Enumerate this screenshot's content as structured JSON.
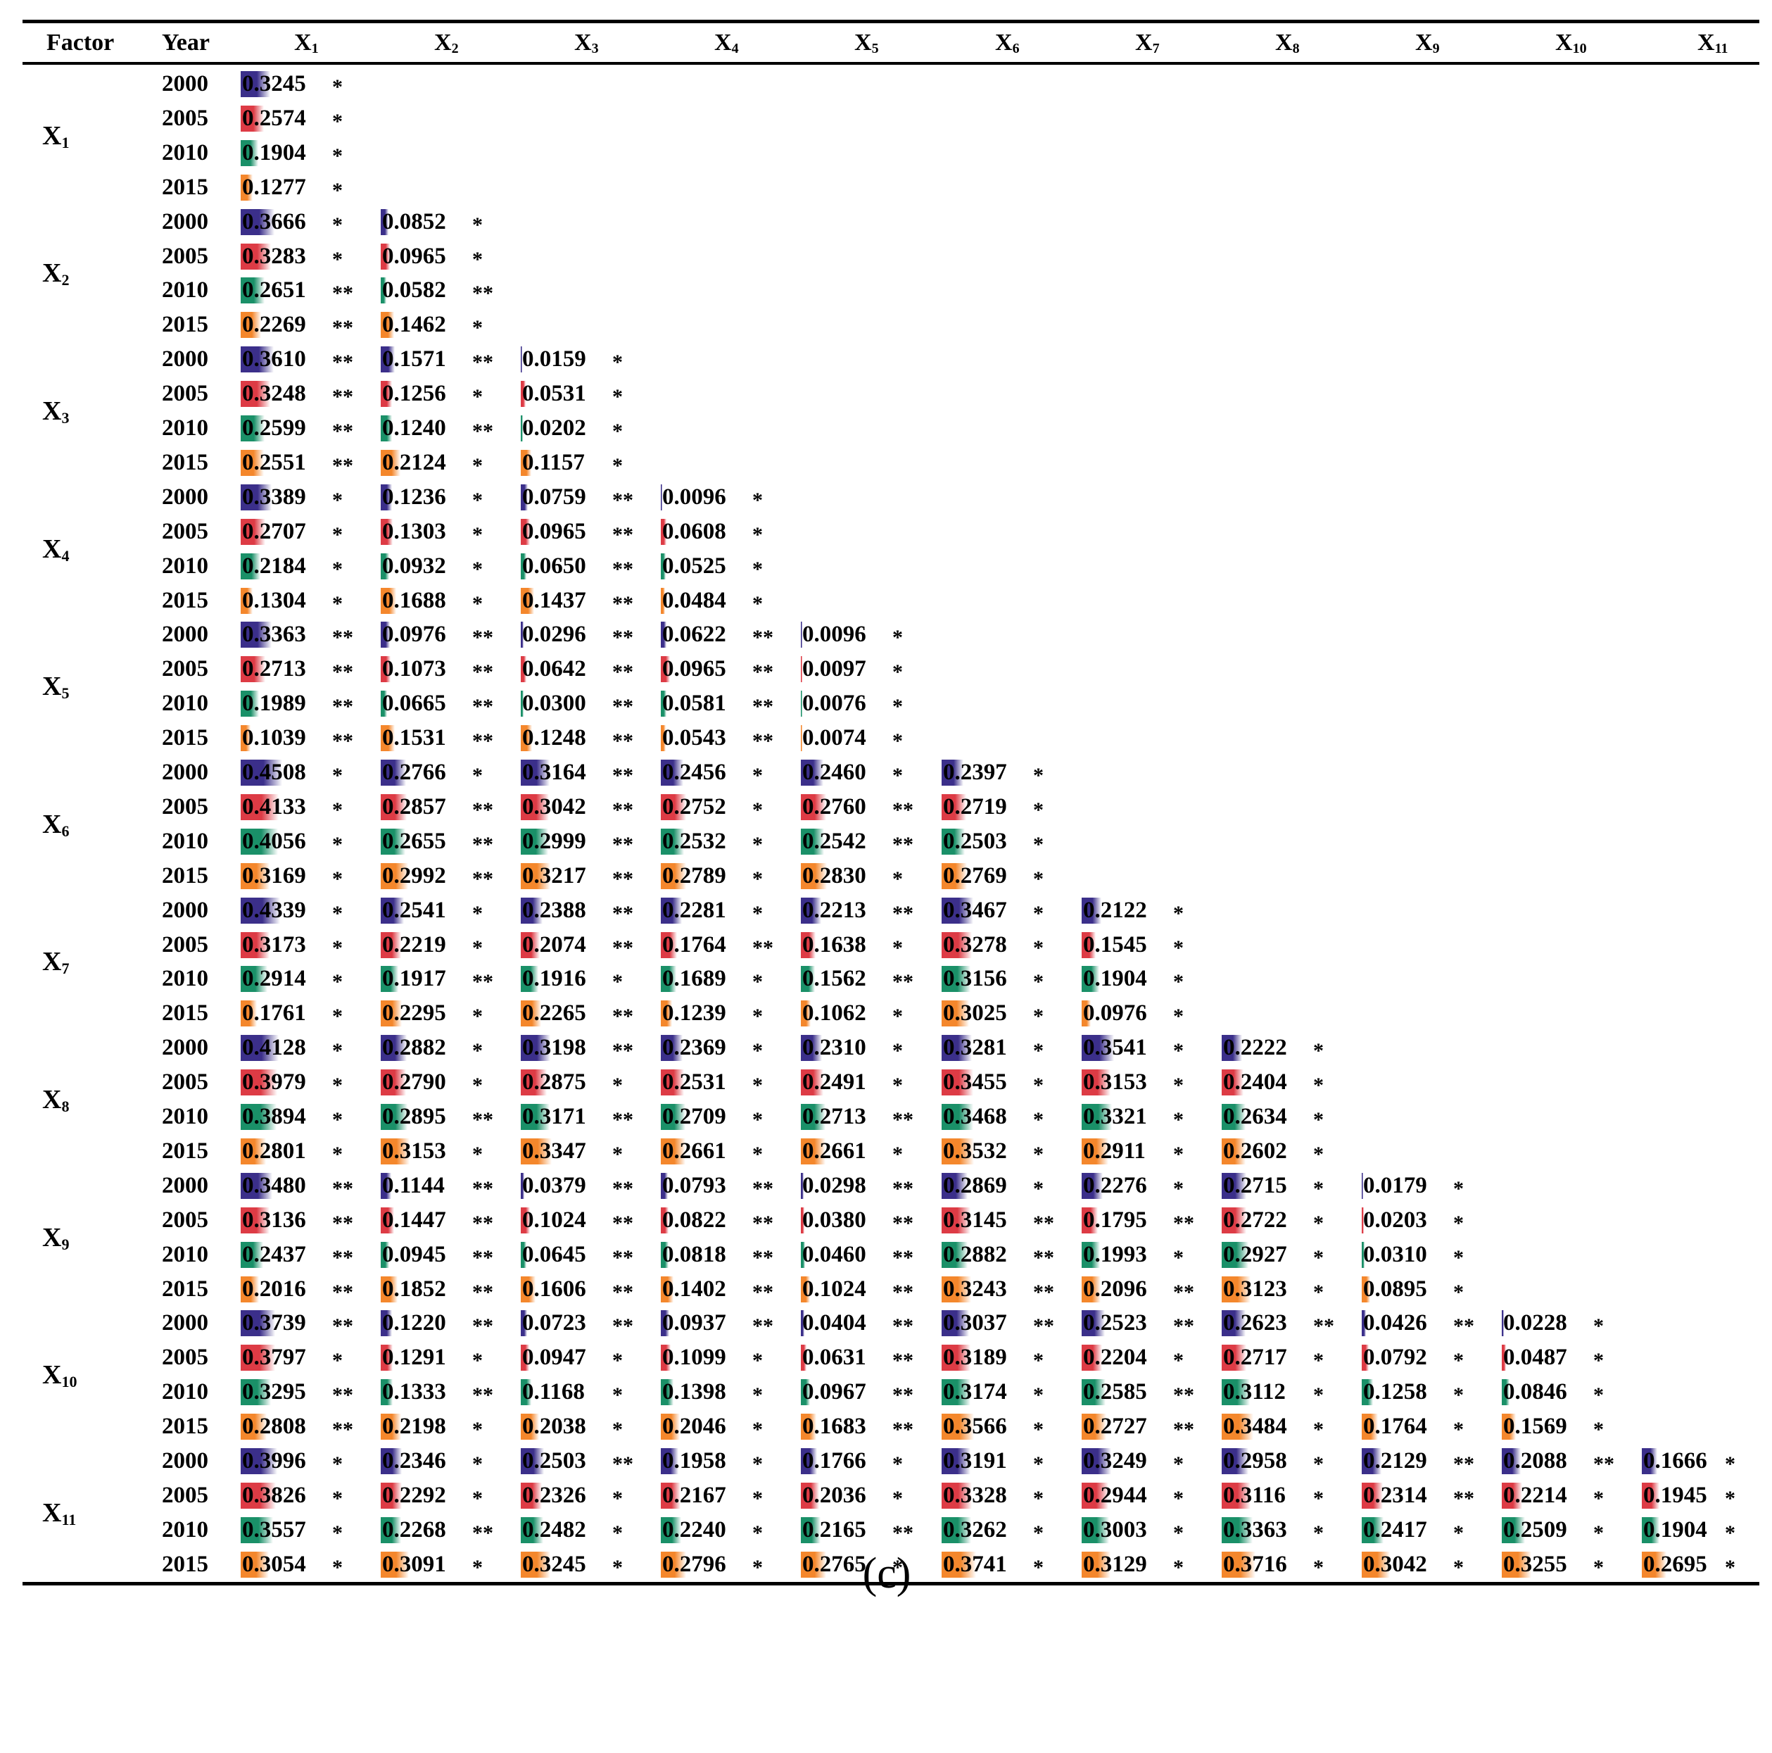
{
  "colors": {
    "2000": "#3b2f8a",
    "2005": "#dd3b45",
    "2010": "#1a9068",
    "2015": "#f4872c"
  },
  "header": {
    "factor": "Factor",
    "year": "Year",
    "columns": [
      {
        "main": "X",
        "sub": "1"
      },
      {
        "main": "X",
        "sub": "2"
      },
      {
        "main": "X",
        "sub": "3"
      },
      {
        "main": "X",
        "sub": "4"
      },
      {
        "main": "X",
        "sub": "5"
      },
      {
        "main": "X",
        "sub": "6"
      },
      {
        "main": "X",
        "sub": "7"
      },
      {
        "main": "X",
        "sub": "8"
      },
      {
        "main": "X",
        "sub": "9"
      },
      {
        "main": "X",
        "sub": "10"
      },
      {
        "main": "X",
        "sub": "11"
      }
    ]
  },
  "years": [
    "2000",
    "2005",
    "2010",
    "2015"
  ],
  "groups": [
    {
      "factor": {
        "main": "X",
        "sub": "1"
      },
      "cells": [
        [
          [
            "0.3245",
            "*"
          ]
        ],
        [
          [
            "0.2574",
            "*"
          ]
        ],
        [
          [
            "0.1904",
            "*"
          ]
        ],
        [
          [
            "0.1277",
            "*"
          ]
        ]
      ]
    },
    {
      "factor": {
        "main": "X",
        "sub": "2"
      },
      "cells": [
        [
          [
            "0.3666",
            "*"
          ],
          [
            "0.0852",
            "*"
          ]
        ],
        [
          [
            "0.3283",
            "*"
          ],
          [
            "0.0965",
            "*"
          ]
        ],
        [
          [
            "0.2651",
            "**"
          ],
          [
            "0.0582",
            "**"
          ]
        ],
        [
          [
            "0.2269",
            "**"
          ],
          [
            "0.1462",
            "*"
          ]
        ]
      ]
    },
    {
      "factor": {
        "main": "X",
        "sub": "3"
      },
      "cells": [
        [
          [
            "0.3610",
            "**"
          ],
          [
            "0.1571",
            "**"
          ],
          [
            "0.0159",
            "*"
          ]
        ],
        [
          [
            "0.3248",
            "**"
          ],
          [
            "0.1256",
            "*"
          ],
          [
            "0.0531",
            "*"
          ]
        ],
        [
          [
            "0.2599",
            "**"
          ],
          [
            "0.1240",
            "**"
          ],
          [
            "0.0202",
            "*"
          ]
        ],
        [
          [
            "0.2551",
            "**"
          ],
          [
            "0.2124",
            "*"
          ],
          [
            "0.1157",
            "*"
          ]
        ]
      ]
    },
    {
      "factor": {
        "main": "X",
        "sub": "4"
      },
      "cells": [
        [
          [
            "0.3389",
            "*"
          ],
          [
            "0.1236",
            "*"
          ],
          [
            "0.0759",
            "**"
          ],
          [
            "0.0096",
            "*"
          ]
        ],
        [
          [
            "0.2707",
            "*"
          ],
          [
            "0.1303",
            "*"
          ],
          [
            "0.0965",
            "**"
          ],
          [
            "0.0608",
            "*"
          ]
        ],
        [
          [
            "0.2184",
            "*"
          ],
          [
            "0.0932",
            "*"
          ],
          [
            "0.0650",
            "**"
          ],
          [
            "0.0525",
            "*"
          ]
        ],
        [
          [
            "0.1304",
            "*"
          ],
          [
            "0.1688",
            "*"
          ],
          [
            "0.1437",
            "**"
          ],
          [
            "0.0484",
            "*"
          ]
        ]
      ]
    },
    {
      "factor": {
        "main": "X",
        "sub": "5"
      },
      "cells": [
        [
          [
            "0.3363",
            "**"
          ],
          [
            "0.0976",
            "**"
          ],
          [
            "0.0296",
            "**"
          ],
          [
            "0.0622",
            "**"
          ],
          [
            "0.0096",
            "*"
          ]
        ],
        [
          [
            "0.2713",
            "**"
          ],
          [
            "0.1073",
            "**"
          ],
          [
            "0.0642",
            "**"
          ],
          [
            "0.0965",
            "**"
          ],
          [
            "0.0097",
            "*"
          ]
        ],
        [
          [
            "0.1989",
            "**"
          ],
          [
            "0.0665",
            "**"
          ],
          [
            "0.0300",
            "**"
          ],
          [
            "0.0581",
            "**"
          ],
          [
            "0.0076",
            "*"
          ]
        ],
        [
          [
            "0.1039",
            "**"
          ],
          [
            "0.1531",
            "**"
          ],
          [
            "0.1248",
            "**"
          ],
          [
            "0.0543",
            "**"
          ],
          [
            "0.0074",
            "*"
          ]
        ]
      ]
    },
    {
      "factor": {
        "main": "X",
        "sub": "6"
      },
      "cells": [
        [
          [
            "0.4508",
            "*"
          ],
          [
            "0.2766",
            "*"
          ],
          [
            "0.3164",
            "**"
          ],
          [
            "0.2456",
            "*"
          ],
          [
            "0.2460",
            "*"
          ],
          [
            "0.2397",
            "*"
          ]
        ],
        [
          [
            "0.4133",
            "*"
          ],
          [
            "0.2857",
            "**"
          ],
          [
            "0.3042",
            "**"
          ],
          [
            "0.2752",
            "*"
          ],
          [
            "0.2760",
            "**"
          ],
          [
            "0.2719",
            "*"
          ]
        ],
        [
          [
            "0.4056",
            "*"
          ],
          [
            "0.2655",
            "**"
          ],
          [
            "0.2999",
            "**"
          ],
          [
            "0.2532",
            "*"
          ],
          [
            "0.2542",
            "**"
          ],
          [
            "0.2503",
            "*"
          ]
        ],
        [
          [
            "0.3169",
            "*"
          ],
          [
            "0.2992",
            "**"
          ],
          [
            "0.3217",
            "**"
          ],
          [
            "0.2789",
            "*"
          ],
          [
            "0.2830",
            "*"
          ],
          [
            "0.2769",
            "*"
          ]
        ]
      ]
    },
    {
      "factor": {
        "main": "X",
        "sub": "7"
      },
      "cells": [
        [
          [
            "0.4339",
            "*"
          ],
          [
            "0.2541",
            "*"
          ],
          [
            "0.2388",
            "**"
          ],
          [
            "0.2281",
            "*"
          ],
          [
            "0.2213",
            "**"
          ],
          [
            "0.3467",
            "*"
          ],
          [
            "0.2122",
            "*"
          ]
        ],
        [
          [
            "0.3173",
            "*"
          ],
          [
            "0.2219",
            "*"
          ],
          [
            "0.2074",
            "**"
          ],
          [
            "0.1764",
            "**"
          ],
          [
            "0.1638",
            "*"
          ],
          [
            "0.3278",
            "*"
          ],
          [
            "0.1545",
            "*"
          ]
        ],
        [
          [
            "0.2914",
            "*"
          ],
          [
            "0.1917",
            "**"
          ],
          [
            "0.1916",
            "*"
          ],
          [
            "0.1689",
            "*"
          ],
          [
            "0.1562",
            "**"
          ],
          [
            "0.3156",
            "*"
          ],
          [
            "0.1904",
            "*"
          ]
        ],
        [
          [
            "0.1761",
            "*"
          ],
          [
            "0.2295",
            "*"
          ],
          [
            "0.2265",
            "**"
          ],
          [
            "0.1239",
            "*"
          ],
          [
            "0.1062",
            "*"
          ],
          [
            "0.3025",
            "*"
          ],
          [
            "0.0976",
            "*"
          ]
        ]
      ]
    },
    {
      "factor": {
        "main": "X",
        "sub": "8"
      },
      "cells": [
        [
          [
            "0.4128",
            "*"
          ],
          [
            "0.2882",
            "*"
          ],
          [
            "0.3198",
            "**"
          ],
          [
            "0.2369",
            "*"
          ],
          [
            "0.2310",
            "*"
          ],
          [
            "0.3281",
            "*"
          ],
          [
            "0.3541",
            "*"
          ],
          [
            "0.2222",
            "*"
          ]
        ],
        [
          [
            "0.3979",
            "*"
          ],
          [
            "0.2790",
            "*"
          ],
          [
            "0.2875",
            "*"
          ],
          [
            "0.2531",
            "*"
          ],
          [
            "0.2491",
            "*"
          ],
          [
            "0.3455",
            "*"
          ],
          [
            "0.3153",
            "*"
          ],
          [
            "0.2404",
            "*"
          ]
        ],
        [
          [
            "0.3894",
            "*"
          ],
          [
            "0.2895",
            "**"
          ],
          [
            "0.3171",
            "**"
          ],
          [
            "0.2709",
            "*"
          ],
          [
            "0.2713",
            "**"
          ],
          [
            "0.3468",
            "*"
          ],
          [
            "0.3321",
            "*"
          ],
          [
            "0.2634",
            "*"
          ]
        ],
        [
          [
            "0.2801",
            "*"
          ],
          [
            "0.3153",
            "*"
          ],
          [
            "0.3347",
            "*"
          ],
          [
            "0.2661",
            "*"
          ],
          [
            "0.2661",
            "*"
          ],
          [
            "0.3532",
            "*"
          ],
          [
            "0.2911",
            "*"
          ],
          [
            "0.2602",
            "*"
          ]
        ]
      ]
    },
    {
      "factor": {
        "main": "X",
        "sub": "9"
      },
      "cells": [
        [
          [
            "0.3480",
            "**"
          ],
          [
            "0.1144",
            "**"
          ],
          [
            "0.0379",
            "**"
          ],
          [
            "0.0793",
            "**"
          ],
          [
            "0.0298",
            "**"
          ],
          [
            "0.2869",
            "*"
          ],
          [
            "0.2276",
            "*"
          ],
          [
            "0.2715",
            "*"
          ],
          [
            "0.0179",
            "*"
          ]
        ],
        [
          [
            "0.3136",
            "**"
          ],
          [
            "0.1447",
            "**"
          ],
          [
            "0.1024",
            "**"
          ],
          [
            "0.0822",
            "**"
          ],
          [
            "0.0380",
            "**"
          ],
          [
            "0.3145",
            "**"
          ],
          [
            "0.1795",
            "**"
          ],
          [
            "0.2722",
            "*"
          ],
          [
            "0.0203",
            "*"
          ]
        ],
        [
          [
            "0.2437",
            "**"
          ],
          [
            "0.0945",
            "**"
          ],
          [
            "0.0645",
            "**"
          ],
          [
            "0.0818",
            "**"
          ],
          [
            "0.0460",
            "**"
          ],
          [
            "0.2882",
            "**"
          ],
          [
            "0.1993",
            "*"
          ],
          [
            "0.2927",
            "*"
          ],
          [
            "0.0310",
            "*"
          ]
        ],
        [
          [
            "0.2016",
            "**"
          ],
          [
            "0.1852",
            "**"
          ],
          [
            "0.1606",
            "**"
          ],
          [
            "0.1402",
            "**"
          ],
          [
            "0.1024",
            "**"
          ],
          [
            "0.3243",
            "**"
          ],
          [
            "0.2096",
            "**"
          ],
          [
            "0.3123",
            "*"
          ],
          [
            "0.0895",
            "*"
          ]
        ]
      ]
    },
    {
      "factor": {
        "main": "X",
        "sub": "10"
      },
      "cells": [
        [
          [
            "0.3739",
            "**"
          ],
          [
            "0.1220",
            "**"
          ],
          [
            "0.0723",
            "**"
          ],
          [
            "0.0937",
            "**"
          ],
          [
            "0.0404",
            "**"
          ],
          [
            "0.3037",
            "**"
          ],
          [
            "0.2523",
            "**"
          ],
          [
            "0.2623",
            "**"
          ],
          [
            "0.0426",
            "**"
          ],
          [
            "0.0228",
            "*"
          ]
        ],
        [
          [
            "0.3797",
            "*"
          ],
          [
            "0.1291",
            "*"
          ],
          [
            "0.0947",
            "*"
          ],
          [
            "0.1099",
            "*"
          ],
          [
            "0.0631",
            "**"
          ],
          [
            "0.3189",
            "*"
          ],
          [
            "0.2204",
            "*"
          ],
          [
            "0.2717",
            "*"
          ],
          [
            "0.0792",
            "*"
          ],
          [
            "0.0487",
            "*"
          ]
        ],
        [
          [
            "0.3295",
            "**"
          ],
          [
            "0.1333",
            "**"
          ],
          [
            "0.1168",
            "*"
          ],
          [
            "0.1398",
            "*"
          ],
          [
            "0.0967",
            "**"
          ],
          [
            "0.3174",
            "*"
          ],
          [
            "0.2585",
            "**"
          ],
          [
            "0.3112",
            "*"
          ],
          [
            "0.1258",
            "*"
          ],
          [
            "0.0846",
            "*"
          ]
        ],
        [
          [
            "0.2808",
            "**"
          ],
          [
            "0.2198",
            "*"
          ],
          [
            "0.2038",
            "*"
          ],
          [
            "0.2046",
            "*"
          ],
          [
            "0.1683",
            "**"
          ],
          [
            "0.3566",
            "*"
          ],
          [
            "0.2727",
            "**"
          ],
          [
            "0.3484",
            "*"
          ],
          [
            "0.1764",
            "*"
          ],
          [
            "0.1569",
            "*"
          ]
        ]
      ]
    },
    {
      "factor": {
        "main": "X",
        "sub": "11"
      },
      "cells": [
        [
          [
            "0.3996",
            "*"
          ],
          [
            "0.2346",
            "*"
          ],
          [
            "0.2503",
            "**"
          ],
          [
            "0.1958",
            "*"
          ],
          [
            "0.1766",
            "*"
          ],
          [
            "0.3191",
            "*"
          ],
          [
            "0.3249",
            "*"
          ],
          [
            "0.2958",
            "*"
          ],
          [
            "0.2129",
            "**"
          ],
          [
            "0.2088",
            "**"
          ],
          [
            "0.1666",
            "*"
          ]
        ],
        [
          [
            "0.3826",
            "*"
          ],
          [
            "0.2292",
            "*"
          ],
          [
            "0.2326",
            "*"
          ],
          [
            "0.2167",
            "*"
          ],
          [
            "0.2036",
            "*"
          ],
          [
            "0.3328",
            "*"
          ],
          [
            "0.2944",
            "*"
          ],
          [
            "0.3116",
            "*"
          ],
          [
            "0.2314",
            "**"
          ],
          [
            "0.2214",
            "*"
          ],
          [
            "0.1945",
            "*"
          ]
        ],
        [
          [
            "0.3557",
            "*"
          ],
          [
            "0.2268",
            "**"
          ],
          [
            "0.2482",
            "*"
          ],
          [
            "0.2240",
            "*"
          ],
          [
            "0.2165",
            "**"
          ],
          [
            "0.3262",
            "*"
          ],
          [
            "0.3003",
            "*"
          ],
          [
            "0.3363",
            "*"
          ],
          [
            "0.2417",
            "*"
          ],
          [
            "0.2509",
            "*"
          ],
          [
            "0.1904",
            "*"
          ]
        ],
        [
          [
            "0.3054",
            "*"
          ],
          [
            "0.3091",
            "*"
          ],
          [
            "0.3245",
            "*"
          ],
          [
            "0.2796",
            "*"
          ],
          [
            "0.2765",
            "*"
          ],
          [
            "0.3741",
            "*"
          ],
          [
            "0.3129",
            "*"
          ],
          [
            "0.3716",
            "*"
          ],
          [
            "0.3042",
            "*"
          ],
          [
            "0.3255",
            "*"
          ],
          [
            "0.2695",
            "*"
          ]
        ]
      ]
    }
  ],
  "caption": "(c)"
}
